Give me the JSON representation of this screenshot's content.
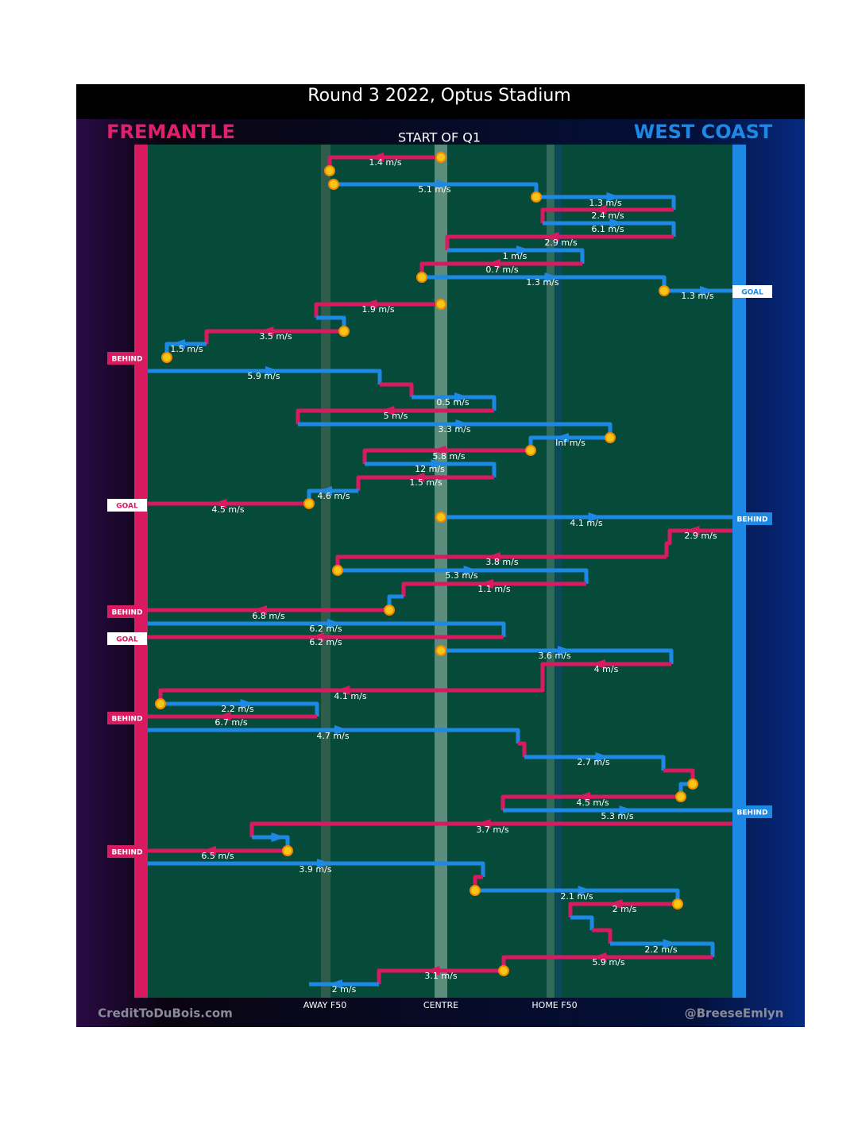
{
  "header": {
    "title": "Round 3 2022, Optus Stadium",
    "left_team": "FREMANTLE",
    "right_team": "WEST COAST",
    "period": "START OF Q1"
  },
  "axis": [
    "AWAY F50",
    "CENTRE",
    "HOME F50"
  ],
  "footer": {
    "left": "CreditToDuBois.com",
    "right": "@BreeseEmlyn"
  },
  "segments": [
    {
      "speed": "1.4 m/s",
      "color": "#d81b60"
    },
    {
      "speed": "5.1 m/s",
      "color": "#1e88e5"
    },
    {
      "speed": "1.3 m/s",
      "color": "#1e88e5"
    },
    {
      "speed": "2.4 m/s",
      "color": "#d81b60"
    },
    {
      "speed": "6.1 m/s",
      "color": "#1e88e5"
    },
    {
      "speed": "2.9 m/s",
      "color": "#d81b60"
    },
    {
      "speed": "1 m/s",
      "color": "#1e88e5"
    },
    {
      "speed": "0.7 m/s",
      "color": "#d81b60"
    },
    {
      "speed": "1.3 m/s",
      "color": "#1e88e5"
    },
    {
      "speed": "1.3 m/s",
      "color": "#1e88e5"
    },
    {
      "speed": "1.9 m/s",
      "color": "#d81b60"
    },
    {
      "color": "#1e88e5"
    },
    {
      "speed": "3.5 m/s",
      "color": "#d81b60"
    },
    {
      "speed": "1.5 m/s",
      "color": "#1e88e5"
    },
    {
      "speed": "5.9 m/s",
      "color": "#1e88e5"
    },
    {
      "color": "#d81b60"
    },
    {
      "speed": "0.5 m/s",
      "color": "#1e88e5"
    },
    {
      "speed": "5 m/s",
      "color": "#d81b60"
    },
    {
      "speed": "3.3 m/s",
      "color": "#1e88e5"
    },
    {
      "speed": "Inf m/s",
      "color": "#1e88e5"
    },
    {
      "speed": "5.8 m/s",
      "color": "#d81b60"
    },
    {
      "speed": "12 m/s",
      "color": "#1e88e5"
    },
    {
      "speed": "1.5 m/s",
      "color": "#d81b60"
    },
    {
      "speed": "4.6 m/s",
      "color": "#1e88e5"
    },
    {
      "speed": "4.5 m/s",
      "color": "#d81b60"
    },
    {
      "speed": "4.1 m/s",
      "color": "#1e88e5"
    },
    {
      "speed": "2.9 m/s",
      "color": "#d81b60"
    },
    {
      "speed": "3.8 m/s",
      "color": "#d81b60"
    },
    {
      "speed": "5.3 m/s",
      "color": "#1e88e5"
    },
    {
      "speed": "1.1 m/s",
      "color": "#d81b60"
    },
    {
      "color": "#1e88e5"
    },
    {
      "speed": "6.8 m/s",
      "color": "#d81b60"
    },
    {
      "speed": "6.2 m/s",
      "color": "#1e88e5"
    },
    {
      "speed": "6.2 m/s",
      "color": "#d81b60"
    },
    {
      "speed": "3.6 m/s",
      "color": "#1e88e5"
    },
    {
      "speed": "4 m/s",
      "color": "#d81b60"
    },
    {
      "speed": "4.1 m/s",
      "color": "#d81b60"
    },
    {
      "speed": "2.2 m/s",
      "color": "#1e88e5"
    },
    {
      "speed": "6.7 m/s",
      "color": "#d81b60"
    },
    {
      "speed": "4.7 m/s",
      "color": "#1e88e5"
    },
    {
      "color": "#d81b60"
    },
    {
      "speed": "2.7 m/s",
      "color": "#1e88e5"
    },
    {
      "color": "#d81b60"
    },
    {
      "color": "#1e88e5"
    },
    {
      "speed": "4.5 m/s",
      "color": "#d81b60"
    },
    {
      "speed": "5.3 m/s",
      "color": "#1e88e5"
    },
    {
      "speed": "3.7 m/s",
      "color": "#d81b60"
    },
    {
      "color": "#1e88e5"
    },
    {
      "speed": "6.5 m/s",
      "color": "#d81b60"
    },
    {
      "speed": "3.9 m/s",
      "color": "#1e88e5"
    },
    {
      "color": "#d81b60"
    },
    {
      "speed": "2.1 m/s",
      "color": "#1e88e5"
    },
    {
      "speed": "2 m/s",
      "color": "#d81b60"
    },
    {
      "color": "#1e88e5"
    },
    {
      "color": "#d81b60"
    },
    {
      "speed": "2.2 m/s",
      "color": "#1e88e5"
    },
    {
      "speed": "5.9 m/s",
      "color": "#d81b60"
    },
    {
      "speed": "3.1 m/s",
      "color": "#d81b60"
    },
    {
      "speed": "2 m/s",
      "color": "#1e88e5"
    }
  ],
  "outcomes": [
    {
      "label": "GOAL",
      "color": "#1e88e5"
    },
    {
      "label": "BEHIND",
      "color": "#d81b60"
    },
    {
      "label": "GOAL",
      "color": "#d81b60"
    },
    {
      "label": "BEHIND",
      "color": "#1e88e5"
    },
    {
      "label": "BEHIND",
      "color": "#d81b60"
    },
    {
      "label": "GOAL",
      "color": "#d81b60"
    },
    {
      "label": "BEHIND",
      "color": "#d81b60"
    },
    {
      "label": "BEHIND",
      "color": "#1e88e5"
    },
    {
      "label": "BEHIND",
      "color": "#d81b60"
    }
  ]
}
